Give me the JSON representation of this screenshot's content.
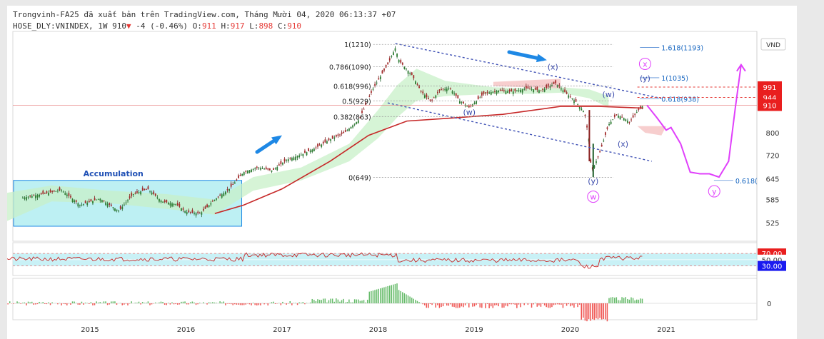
{
  "header": {
    "line1": "Trongvinh-FA25 đã xuất bản trên TradingView.com, Tháng Mười 04, 2020 06:13:37 +07",
    "symbol": "HOSE_DLY:VNINDEX, 1W",
    "last": "910",
    "change": "-4 (-0.46%)",
    "o_label": "O:",
    "o": "911",
    "h_label": "H:",
    "h": "917",
    "l_label": "L:",
    "l": "898",
    "c_label": "C:",
    "c": "910"
  },
  "chart_data": {
    "type": "candlestick",
    "timeframe": "1W",
    "currency": "VND",
    "xaxis": {
      "ticks": [
        "2015",
        "2016",
        "2017",
        "2018",
        "2019",
        "2020",
        "2021"
      ]
    },
    "yaxis": {
      "scale": "log",
      "ticks": [
        525,
        585,
        645,
        720,
        800
      ]
    },
    "price_badges": [
      "991",
      "944",
      "910"
    ],
    "accumulation_label": "Accumulation",
    "fib_levels": [
      {
        "label": "1(1210)",
        "value": 1210
      },
      {
        "label": "0.786(1090)",
        "value": 1090
      },
      {
        "label": "0.618(996)",
        "value": 996
      },
      {
        "label": "0.5(929)",
        "value": 929
      },
      {
        "label": "0.382(863)",
        "value": 863
      },
      {
        "label": "0(649)",
        "value": 649
      }
    ],
    "fib_ext": [
      {
        "label": "1.618(1193)",
        "value": 1193
      },
      {
        "label": "1(1035)",
        "value": 1035
      },
      {
        "label": "0.618(938)",
        "value": 938
      },
      {
        "label": "0.618(",
        "value": 640
      }
    ],
    "wave_labels": [
      "(w)",
      "(x)",
      "(w)",
      "(y)",
      "(x)",
      "(y)",
      "(y)",
      "x",
      "y",
      "w"
    ],
    "weekly_close": [
      [
        2014.3,
        590
      ],
      [
        2014.5,
        600
      ],
      [
        2014.7,
        612
      ],
      [
        2014.9,
        570
      ],
      [
        2015.1,
        588
      ],
      [
        2015.3,
        555
      ],
      [
        2015.45,
        600
      ],
      [
        2015.6,
        615
      ],
      [
        2015.75,
        580
      ],
      [
        2015.9,
        572
      ],
      [
        2016.0,
        552
      ],
      [
        2016.15,
        548
      ],
      [
        2016.3,
        585
      ],
      [
        2016.45,
        615
      ],
      [
        2016.6,
        665
      ],
      [
        2016.75,
        680
      ],
      [
        2016.9,
        670
      ],
      [
        2017.05,
        705
      ],
      [
        2017.2,
        722
      ],
      [
        2017.35,
        745
      ],
      [
        2017.5,
        775
      ],
      [
        2017.65,
        800
      ],
      [
        2017.8,
        850
      ],
      [
        2017.95,
        985
      ],
      [
        2018.1,
        1100
      ],
      [
        2018.18,
        1190
      ],
      [
        2018.22,
        1120
      ],
      [
        2018.35,
        1050
      ],
      [
        2018.45,
        970
      ],
      [
        2018.55,
        925
      ],
      [
        2018.65,
        980
      ],
      [
        2018.75,
        985
      ],
      [
        2018.85,
        930
      ],
      [
        2018.95,
        900
      ],
      [
        2019.1,
        960
      ],
      [
        2019.25,
        975
      ],
      [
        2019.4,
        970
      ],
      [
        2019.55,
        985
      ],
      [
        2019.7,
        975
      ],
      [
        2019.85,
        1010
      ],
      [
        2019.95,
        965
      ],
      [
        2020.05,
        930
      ],
      [
        2020.15,
        880
      ],
      [
        2020.2,
        765
      ],
      [
        2020.22,
        665
      ],
      [
        2020.3,
        720
      ],
      [
        2020.4,
        830
      ],
      [
        2020.48,
        870
      ],
      [
        2020.55,
        860
      ],
      [
        2020.62,
        840
      ],
      [
        2020.7,
        885
      ],
      [
        2020.76,
        910
      ]
    ],
    "ma": [
      [
        2016.3,
        548
      ],
      [
        2016.6,
        570
      ],
      [
        2017.0,
        615
      ],
      [
        2017.5,
        700
      ],
      [
        2017.9,
        790
      ],
      [
        2018.3,
        845
      ],
      [
        2018.8,
        858
      ],
      [
        2019.3,
        872
      ],
      [
        2019.9,
        905
      ],
      [
        2020.3,
        905
      ],
      [
        2020.76,
        898
      ]
    ],
    "forecast_path": [
      [
        2020.8,
        910
      ],
      [
        2020.9,
        860
      ],
      [
        2021.0,
        810
      ],
      [
        2021.05,
        820
      ],
      [
        2021.15,
        760
      ],
      [
        2021.25,
        665
      ],
      [
        2021.35,
        660
      ],
      [
        2021.45,
        660
      ],
      [
        2021.55,
        650
      ],
      [
        2021.65,
        700
      ],
      [
        2021.72,
        900
      ],
      [
        2021.78,
        1100
      ]
    ],
    "rsi": {
      "levels": [
        70,
        50,
        30
      ],
      "badges": [
        "70.00",
        "50.00",
        "30.00"
      ]
    },
    "macd": {
      "zero_label": "0"
    }
  }
}
